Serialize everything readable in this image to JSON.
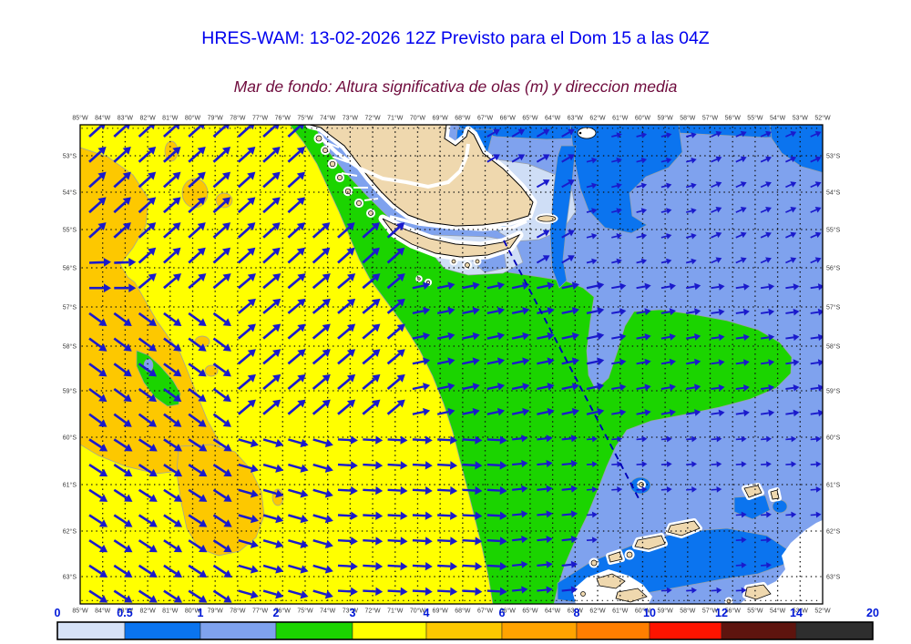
{
  "header": {
    "title": "HRES-WAM: 13-02-2026 12Z Previsto para el Dom 15 a las 04Z",
    "subtitle": "Mar de fondo: Altura significativa de olas (m) y direccion media"
  },
  "colors": {
    "title": "#0000EE",
    "subtitle": "#6E0A3C",
    "sea_base": "#7FA2EE",
    "sea_dark": "#0B74EF",
    "sea_pale": "#CFDEF6",
    "green": "#1BD400",
    "yellow": "#FFFF00",
    "gold": "#FDC800",
    "orange": "#FFA300",
    "orange_dark": "#FF7E00",
    "red": "#FE1400",
    "maroon": "#5E140E",
    "dark": "#2E2E2E",
    "land": "#EFD8AE",
    "coast_white": "#FFFFFF",
    "arrow": "#1A1ACC",
    "dashed_track": "#0000B8",
    "grid": "#111111",
    "axis_text": "#3A3A3A",
    "bar_label": "#0018D8",
    "region_edge": "#9AA0A8"
  },
  "axes": {
    "lon_labels": [
      "85°W",
      "84°W",
      "83°W",
      "82°W",
      "81°W",
      "80°W",
      "79°W",
      "78°W",
      "77°W",
      "76°W",
      "75°W",
      "74°W",
      "73°W",
      "72°W",
      "71°W",
      "70°W",
      "69°W",
      "68°W",
      "67°W",
      "66°W",
      "65°W",
      "64°W",
      "63°W",
      "62°W",
      "61°W",
      "60°W",
      "59°W",
      "58°W",
      "57°W",
      "56°W",
      "55°W",
      "54°W",
      "53°W",
      "52°W"
    ],
    "lat_labels": [
      "53°S",
      "54°S",
      "55°S",
      "56°S",
      "57°S",
      "58°S",
      "59°S",
      "60°S",
      "61°S",
      "62°S",
      "63°S"
    ]
  },
  "colorbar": {
    "tick_labels": [
      "0",
      "0.5",
      "1",
      "2",
      "3",
      "4",
      "6",
      "8",
      "10",
      "12",
      "14",
      "20"
    ],
    "segment_colors": [
      "#D6E2F7",
      "#0A74EF",
      "#7FA2EE",
      "#1BD400",
      "#FFFF00",
      "#FDC800",
      "#FFA300",
      "#FF7E00",
      "#FE1400",
      "#5E140E",
      "#2E2E2E"
    ]
  },
  "chart_data": {
    "type": "heatmap",
    "title": "HRES-WAM: 13-02-2026 12Z Previsto para el Dom 15 a las 04Z",
    "subtitle": "Mar de fondo: Altura significativa de olas (m) y direccion media",
    "variable": "Swell significant wave height (m) with mean direction arrows",
    "lon_range_deg_w": [
      85,
      52
    ],
    "lat_range_deg_s": [
      53,
      63
    ],
    "scale_values_m": [
      0,
      0.5,
      1,
      2,
      3,
      4,
      6,
      8,
      10,
      12,
      14,
      20
    ],
    "scale_colors": [
      "#D6E2F7",
      "#0A74EF",
      "#7FA2EE",
      "#1BD400",
      "#FFFF00",
      "#FDC800",
      "#FFA300",
      "#FF7E00",
      "#FE1400",
      "#5E140E",
      "#2E2E2E"
    ],
    "field_summary": [
      {
        "zone": "west / Pacific",
        "height_m": "3-4 (yellow), patches 4-6 (gold) near 85W and 80-79W/60S",
        "direction": "toward NE, turning E-SE in far SW"
      },
      {
        "zone": "coastal band SW of Tierra del Fuego extending SE across Drake Passage",
        "height_m": "2-3 (green), tongue E to 53W near 58S",
        "direction": "toward E-ENE"
      },
      {
        "zone": "east / Atlantic",
        "height_m": "1-2 (cornflower)",
        "direction": "toward E-NE, short arrows"
      },
      {
        "zone": "northeast and top edge",
        "height_m": "0.5-1 (dark blue)",
        "direction": "toward E"
      },
      {
        "zone": "sheltered coasts near Cape Horn and E of Magellan entrance",
        "height_m": "0-0.5 (pale blue) and white no-data fringe",
        "direction": "-"
      },
      {
        "zone": "south of South Shetland Is. and SE corner",
        "height_m": "0.5-1 (dark blue), white no-data in SE corner",
        "direction": "toward E"
      }
    ],
    "annotations": [
      "dashed navy track line across Drake Passage from Cape Horn to South Shetland Islands"
    ],
    "land": [
      "southern Patagonia / Tierra del Fuego archipelago",
      "Isla de los Estados",
      "South Shetland Islands",
      "Elephant Island",
      "Antarctic Peninsula tip islets"
    ]
  }
}
